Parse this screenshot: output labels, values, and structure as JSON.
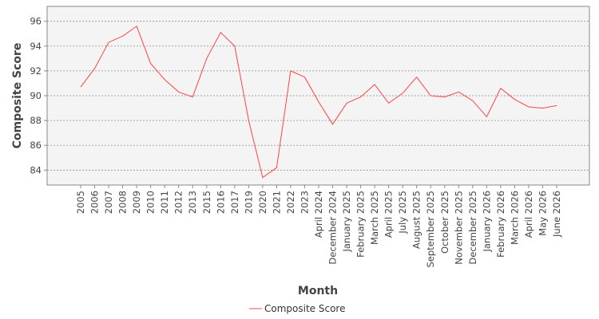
{
  "chart_data": {
    "type": "line",
    "xlabel": "Month",
    "ylabel": "Composite Score",
    "ylim": [
      82.8,
      97.2
    ],
    "yticks": [
      84,
      86,
      88,
      90,
      92,
      94,
      96
    ],
    "grid": true,
    "legend_position": "bottom",
    "categories": [
      "2005",
      "2006",
      "2007",
      "2008",
      "2009",
      "2010",
      "2011",
      "2012",
      "2013",
      "2015",
      "2016",
      "2017",
      "2019",
      "2020",
      "2021",
      "2022",
      "2023",
      "April 2024",
      "December 2024",
      "January 2025",
      "February 2025",
      "March 2025",
      "April 2025",
      "July 2025",
      "August 2025",
      "September 2025",
      "October 2025",
      "November 2025",
      "December 2025",
      "January 2026",
      "February 2026",
      "March 2026",
      "April 2026",
      "May 2026",
      "June 2026"
    ],
    "series": [
      {
        "name": "Composite Score",
        "color": "#ff4444",
        "values": [
          90.7,
          92.2,
          94.3,
          94.8,
          95.6,
          92.6,
          91.3,
          90.3,
          89.9,
          93.0,
          95.1,
          94.0,
          88.0,
          83.4,
          84.2,
          92.0,
          91.5,
          89.5,
          87.7,
          89.4,
          89.9,
          90.9,
          89.4,
          90.2,
          91.5,
          90.0,
          89.9,
          90.3,
          89.6,
          88.3,
          90.6,
          89.7,
          89.1,
          89.0,
          89.2
        ]
      }
    ]
  }
}
